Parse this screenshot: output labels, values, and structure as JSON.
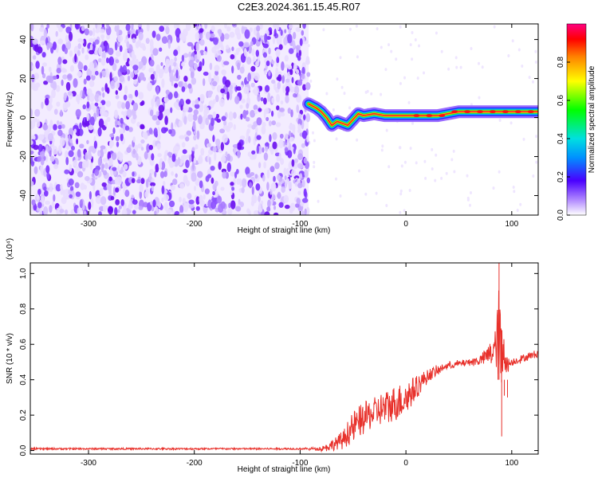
{
  "title": "C2E3.2024.361.15.45.R07",
  "chart_data": [
    {
      "type": "heatmap",
      "xlabel": "Height of straight line (km)",
      "ylabel": "Frequency (Hz)",
      "xlim": [
        -355,
        125
      ],
      "ylim": [
        -50,
        48
      ],
      "xticks": [
        -300,
        -200,
        -100,
        0,
        100
      ],
      "yticks": [
        -40,
        -20,
        0,
        20,
        40
      ],
      "colorbar": {
        "label": "Normalized spectral amplitude",
        "range": [
          0,
          1
        ],
        "ticks": [
          "0.0",
          "0.2",
          "0.4",
          "0.6",
          "0.8"
        ]
      },
      "noise_region_x": [
        -355,
        -92
      ],
      "signal_trace": {
        "x": [
          -92,
          -85,
          -80,
          -75,
          -70,
          -65,
          -60,
          -55,
          -50,
          -45,
          -40,
          -30,
          -20,
          -10,
          0,
          10,
          20,
          30,
          50,
          70,
          85,
          90,
          100,
          110,
          125
        ],
        "y": [
          7,
          5,
          3,
          0,
          -4,
          -2,
          -3,
          -4,
          -1,
          2,
          1,
          2,
          1,
          1,
          1,
          1,
          1,
          1,
          3,
          3,
          3,
          3,
          3,
          3,
          3
        ]
      }
    },
    {
      "type": "line",
      "xlabel": "Height of straight line (km)",
      "ylabel": "SNR (10 * v/v)",
      "scale_label": "(x10⁴)",
      "xlim": [
        -355,
        125
      ],
      "ylim": [
        -0.02,
        1.06
      ],
      "xticks": [
        -300,
        -200,
        -100,
        0,
        100
      ],
      "yticks": [
        "0.0",
        "0.2",
        "0.4",
        "0.6",
        "0.8",
        "1.0"
      ],
      "series": [
        {
          "color": "#e8312b",
          "x": [
            -355,
            -300,
            -200,
            -120,
            -100,
            -80,
            -70,
            -60,
            -55,
            -50,
            -45,
            -40,
            -35,
            -30,
            -25,
            -20,
            -15,
            -10,
            -5,
            0,
            5,
            10,
            15,
            20,
            25,
            30,
            35,
            40,
            50,
            60,
            70,
            75,
            80,
            85,
            88,
            90,
            92,
            95,
            100,
            110,
            125
          ],
          "y": [
            0.01,
            0.01,
            0.01,
            0.01,
            0.01,
            0.01,
            0.03,
            0.06,
            0.1,
            0.13,
            0.16,
            0.18,
            0.2,
            0.21,
            0.23,
            0.24,
            0.25,
            0.27,
            0.28,
            0.3,
            0.33,
            0.36,
            0.39,
            0.42,
            0.44,
            0.45,
            0.47,
            0.48,
            0.49,
            0.5,
            0.51,
            0.53,
            0.55,
            0.58,
            0.68,
            0.4,
            0.62,
            0.48,
            0.5,
            0.52,
            0.55
          ],
          "amplitude": [
            0,
            0,
            0,
            0,
            0,
            0.01,
            0.03,
            0.05,
            0.07,
            0.09,
            0.09,
            0.09,
            0.09,
            0.09,
            0.09,
            0.1,
            0.1,
            0.1,
            0.1,
            0.1,
            0.08,
            0.07,
            0.05,
            0.04,
            0.03,
            0.03,
            0.02,
            0.02,
            0.02,
            0.02,
            0.03,
            0.04,
            0.08,
            0.12,
            0.3,
            0.35,
            0.15,
            0.05,
            0.02,
            0.02,
            0.02
          ]
        }
      ]
    }
  ]
}
